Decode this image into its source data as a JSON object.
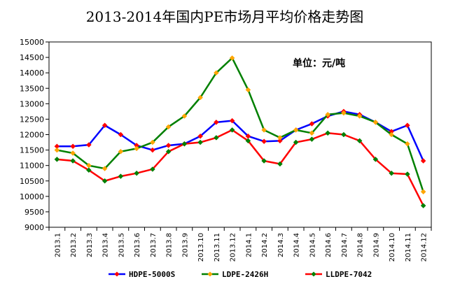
{
  "chart_data": {
    "type": "line",
    "title": "2013-2014年国内PE市场月平均价格走势图",
    "unit_label": "单位：元/吨",
    "ylim": [
      9000,
      15000
    ],
    "yticks": [
      9000,
      9500,
      10000,
      10500,
      11000,
      11500,
      12000,
      12500,
      13000,
      13500,
      14000,
      14500,
      15000
    ],
    "grid": false,
    "legend_position": "bottom",
    "categories": [
      "2013.1",
      "2013.2",
      "2013.3",
      "2013.4",
      "2013.5",
      "2013.6",
      "2013.7",
      "2013.8",
      "2013.9",
      "2013.10",
      "2013.11",
      "2013.12",
      "2014.1",
      "2014.2",
      "2014.3",
      "2014.4",
      "2014.5",
      "2014.6",
      "2014.7",
      "2014.8",
      "2014.9",
      "2014.10",
      "2014.11",
      "2014.12"
    ],
    "series": [
      {
        "name": "HDPE-5000S",
        "line_color": "#0000ff",
        "marker_color": "#ff0000",
        "values": [
          11620,
          11620,
          11670,
          12300,
          12000,
          11650,
          11500,
          11650,
          11700,
          11950,
          12400,
          12450,
          11950,
          11780,
          11800,
          12150,
          12350,
          12600,
          12750,
          12650,
          12400,
          12100,
          12300,
          11150
        ]
      },
      {
        "name": "LDPE-2426H",
        "line_color": "#008000",
        "marker_color": "#ffa500",
        "values": [
          11500,
          11400,
          11000,
          10900,
          11450,
          11550,
          11750,
          12250,
          12600,
          13200,
          14000,
          14480,
          13450,
          12150,
          11900,
          12150,
          12050,
          12650,
          12700,
          12600,
          12400,
          12000,
          11700,
          10150
        ]
      },
      {
        "name": "LLDPE-7042",
        "line_color": "#ff0000",
        "marker_color": "#008000",
        "values": [
          11200,
          11150,
          10850,
          10500,
          10650,
          10750,
          10880,
          11450,
          11700,
          11750,
          11900,
          12150,
          11800,
          11150,
          11050,
          11750,
          11850,
          12050,
          12000,
          11800,
          11200,
          10750,
          10720,
          9700
        ]
      }
    ]
  }
}
